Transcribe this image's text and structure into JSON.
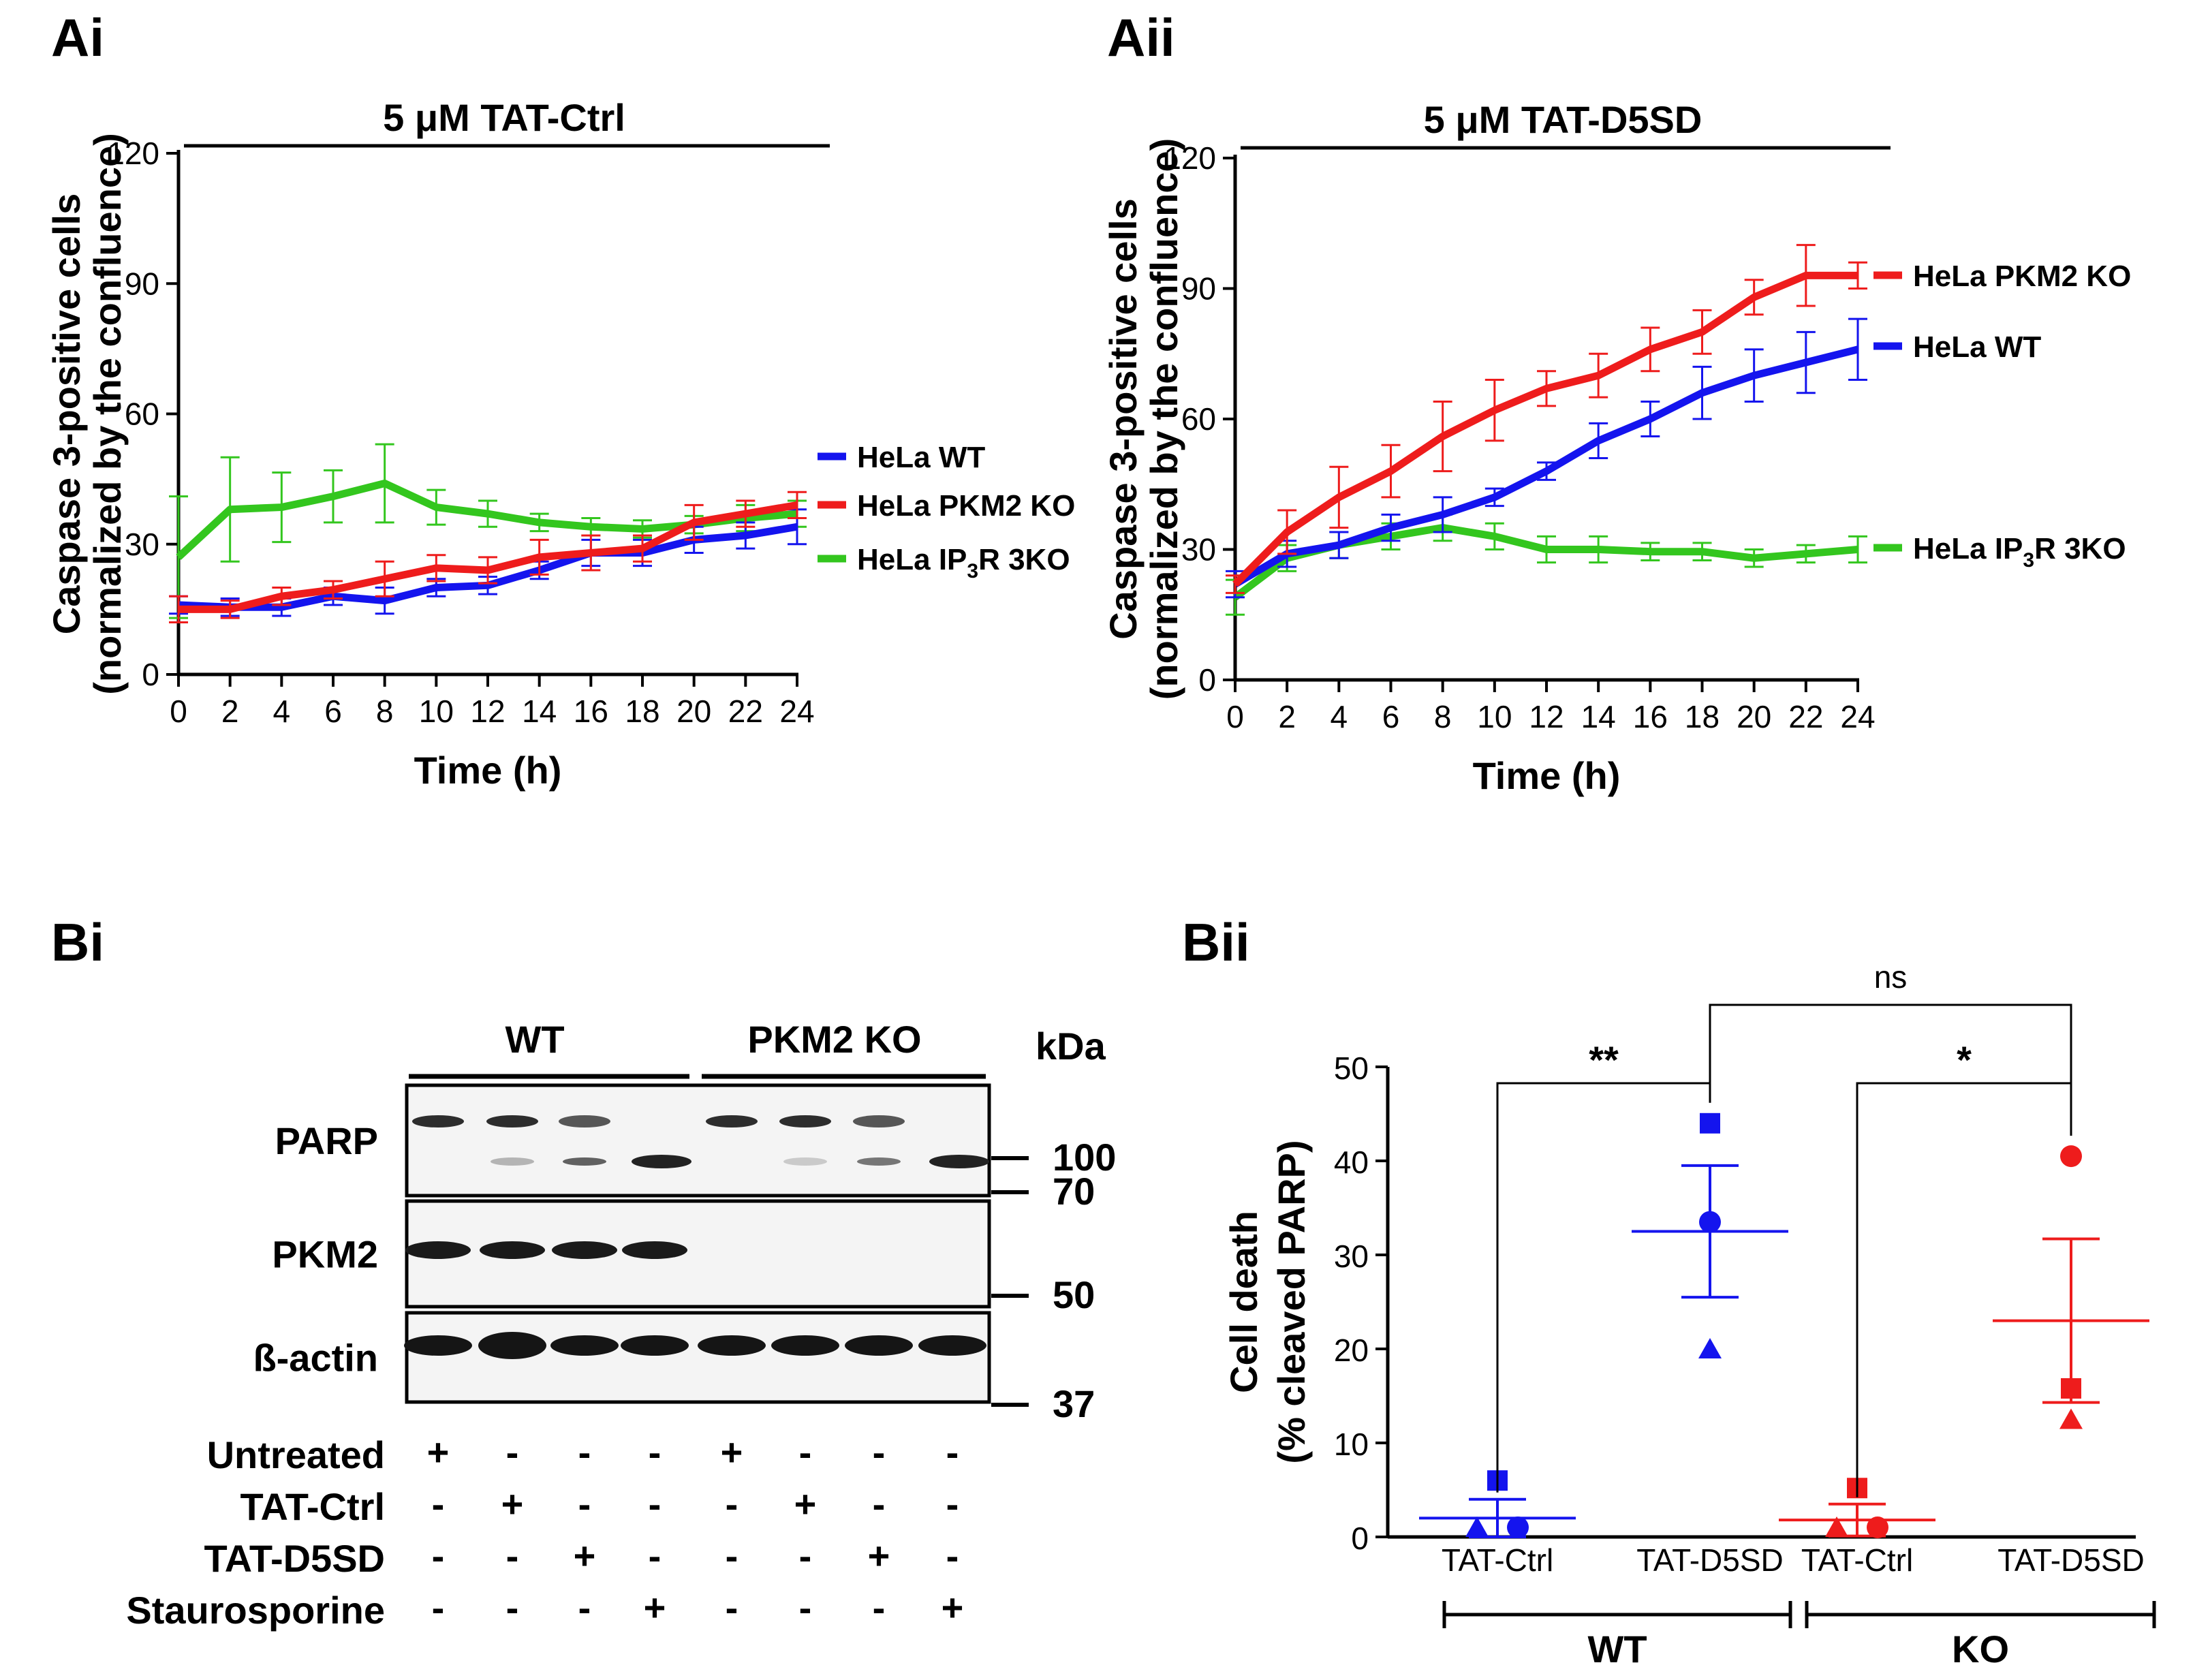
{
  "panels": {
    "ai": "Ai",
    "aii": "Aii",
    "bi": "Bi",
    "bii": "Bii"
  },
  "colors": {
    "wt": "#1414ee",
    "pkm2": "#ee1c1c",
    "ip3r": "#33c61e"
  },
  "chart_data": [
    {
      "id": "ai",
      "type": "line",
      "title": "5 μM TAT-Ctrl",
      "xlabel": "Time (h)",
      "ylabel_line1": "Caspase 3-positive cells",
      "ylabel_line2": "(normalized by the confluence)",
      "x": [
        0,
        2,
        4,
        6,
        8,
        10,
        12,
        14,
        16,
        18,
        20,
        22,
        24
      ],
      "xlim": [
        0,
        24
      ],
      "ylim": [
        0,
        120
      ],
      "xticks": [
        0,
        2,
        4,
        6,
        8,
        10,
        12,
        14,
        16,
        18,
        20,
        22,
        24
      ],
      "yticks": [
        0,
        30,
        60,
        90,
        120
      ],
      "series": [
        {
          "key": "ip3r",
          "name_prefix": "HeLa IP",
          "name_sub": "3",
          "name_suffix": "R 3KO",
          "values": [
            27,
            38,
            38.5,
            41,
            44,
            38.5,
            37,
            35,
            34,
            33.5,
            34.5,
            36,
            37
          ],
          "errors": [
            14,
            12,
            8,
            6,
            9,
            4,
            3,
            2,
            2,
            2,
            2,
            3,
            3
          ]
        },
        {
          "key": "wt",
          "name_prefix": "HeLa WT",
          "name_sub": "",
          "name_suffix": "",
          "values": [
            16,
            15.5,
            15.5,
            18,
            17,
            20,
            20.5,
            24,
            28,
            28,
            31,
            32,
            34
          ],
          "errors": [
            2,
            2,
            2,
            2,
            3,
            2,
            2,
            2,
            3,
            3,
            3,
            3,
            4
          ]
        },
        {
          "key": "pkm2",
          "name_prefix": "HeLa PKM2 KO",
          "name_sub": "",
          "name_suffix": "",
          "values": [
            15,
            15,
            18,
            19.5,
            22,
            24.5,
            24,
            27,
            28,
            29,
            35,
            37,
            39
          ],
          "errors": [
            3,
            2,
            2,
            2,
            4,
            3,
            3,
            4,
            4,
            3,
            4,
            3,
            3
          ]
        }
      ],
      "legend_order": [
        "wt",
        "pkm2",
        "ip3r"
      ]
    },
    {
      "id": "aii",
      "type": "line",
      "title": "5 μM TAT-D5SD",
      "xlabel": "Time (h)",
      "ylabel_line1": "Caspase 3-positive cells",
      "ylabel_line2": "(normalized by the confluence)",
      "x": [
        0,
        2,
        4,
        6,
        8,
        10,
        12,
        14,
        16,
        18,
        20,
        22,
        24
      ],
      "xlim": [
        0,
        24
      ],
      "ylim": [
        0,
        120
      ],
      "xticks": [
        0,
        2,
        4,
        6,
        8,
        10,
        12,
        14,
        16,
        18,
        20,
        22,
        24
      ],
      "yticks": [
        0,
        30,
        60,
        90,
        120
      ],
      "series": [
        {
          "key": "ip3r",
          "name_prefix": "HeLa IP",
          "name_sub": "3",
          "name_suffix": "R 3KO",
          "values": [
            19,
            28,
            31,
            33,
            35,
            33,
            30,
            30,
            29.5,
            29.5,
            28,
            29,
            30
          ],
          "errors": [
            4,
            3,
            3,
            3,
            3,
            3,
            3,
            3,
            2,
            2,
            2,
            2,
            3
          ]
        },
        {
          "key": "wt",
          "name_prefix": "HeLa WT",
          "name_sub": "",
          "name_suffix": "",
          "values": [
            22,
            29,
            31,
            35,
            38,
            42,
            48,
            55,
            60,
            66,
            70,
            73,
            76
          ],
          "errors": [
            3,
            3,
            3,
            3,
            4,
            2,
            2,
            4,
            4,
            6,
            6,
            7,
            7
          ]
        },
        {
          "key": "pkm2",
          "name_prefix": "HeLa PKM2 KO",
          "name_sub": "",
          "name_suffix": "",
          "values": [
            22,
            34,
            42,
            48,
            56,
            62,
            67,
            70,
            76,
            80,
            88,
            93,
            93
          ],
          "errors": [
            2,
            5,
            7,
            6,
            8,
            7,
            4,
            5,
            5,
            5,
            4,
            7,
            3
          ]
        }
      ],
      "legend_order": [
        "pkm2",
        "wt",
        "ip3r"
      ]
    },
    {
      "id": "bii",
      "type": "scatter",
      "ylabel_line1": "Cell death",
      "ylabel_line2": "(% cleaved PARP)",
      "ylim": [
        0,
        50
      ],
      "yticks": [
        0,
        10,
        20,
        30,
        40,
        50
      ],
      "groups": [
        {
          "label": "TAT-Ctrl",
          "genotype": "WT",
          "color_key": "wt",
          "mean": 2.0,
          "sem": 2.0,
          "points": [
            {
              "shape": "square",
              "value": 6
            },
            {
              "shape": "triangle",
              "value": 0
            },
            {
              "shape": "circle",
              "value": 0
            }
          ]
        },
        {
          "label": "TAT-D5SD",
          "genotype": "WT",
          "color_key": "wt",
          "mean": 32.5,
          "sem": 7.0,
          "points": [
            {
              "shape": "square",
              "value": 44
            },
            {
              "shape": "circle",
              "value": 33.5
            },
            {
              "shape": "triangle",
              "value": 20
            }
          ]
        },
        {
          "label": "TAT-Ctrl",
          "genotype": "KO",
          "color_key": "pkm2",
          "mean": 1.8,
          "sem": 1.7,
          "points": [
            {
              "shape": "square",
              "value": 5.2
            },
            {
              "shape": "triangle",
              "value": 0
            },
            {
              "shape": "circle",
              "value": 0
            }
          ]
        },
        {
          "label": "TAT-D5SD",
          "genotype": "KO",
          "color_key": "pkm2",
          "mean": 23.0,
          "sem": 8.7,
          "points": [
            {
              "shape": "circle",
              "value": 40.5
            },
            {
              "shape": "square",
              "value": 15.8
            },
            {
              "shape": "triangle",
              "value": 12.5
            }
          ]
        }
      ],
      "significance": [
        {
          "from": 0,
          "to": 1,
          "label": "**"
        },
        {
          "from": 2,
          "to": 3,
          "label": "*"
        },
        {
          "from": 1,
          "to": 3,
          "label": "ns"
        }
      ],
      "group_labels": [
        "WT",
        "KO"
      ]
    }
  ],
  "blot": {
    "group_wt": "WT",
    "group_ko": "PKM2 KO",
    "kda_label": "kDa",
    "rows": [
      "PARP",
      "PKM2",
      "ß-actin"
    ],
    "markers": [
      "100",
      "70",
      "50",
      "37"
    ],
    "conditions": [
      {
        "label": "Untreated",
        "marks": [
          "+",
          "-",
          "-",
          "-",
          "+",
          "-",
          "-",
          "-"
        ]
      },
      {
        "label": "TAT-Ctrl",
        "marks": [
          "-",
          "+",
          "-",
          "-",
          "-",
          "+",
          "-",
          "-"
        ]
      },
      {
        "label": "TAT-D5SD",
        "marks": [
          "-",
          "-",
          "+",
          "-",
          "-",
          "-",
          "+",
          "-"
        ]
      },
      {
        "label": "Staurosporine",
        "marks": [
          "-",
          "-",
          "-",
          "+",
          "-",
          "-",
          "-",
          "+"
        ]
      }
    ]
  }
}
